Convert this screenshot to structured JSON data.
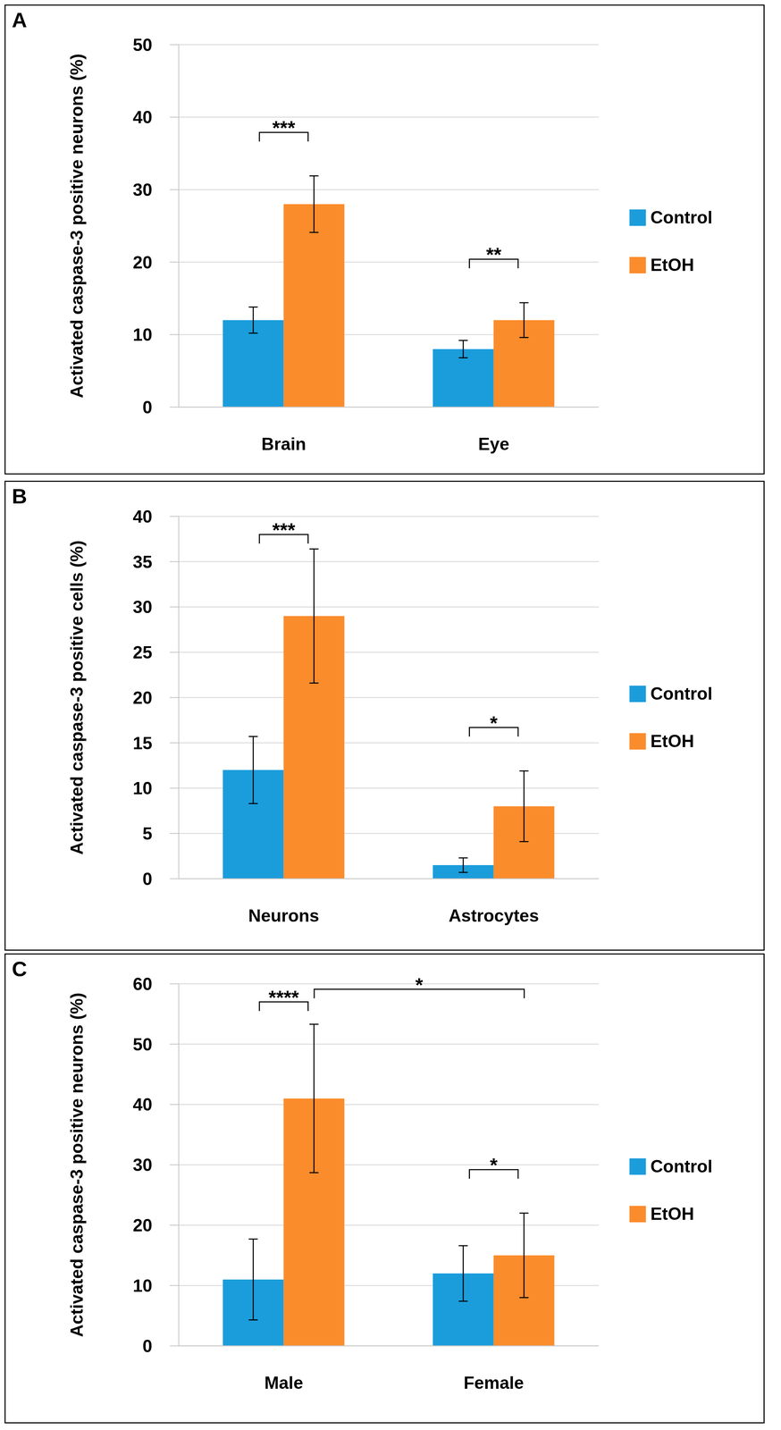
{
  "chart_data": [
    {
      "type": "bar",
      "title": "A",
      "ylabel": "Activated caspase-3 positive neurons (%)",
      "categories": [
        "Brain",
        "Eye"
      ],
      "series": [
        {
          "name": "Control",
          "color": "#1b9ddb",
          "values": [
            12,
            8
          ],
          "errors": [
            1.8,
            1.2
          ]
        },
        {
          "name": "EtOH",
          "color": "#fb8c2c",
          "values": [
            28,
            12
          ],
          "errors": [
            3.9,
            2.4
          ]
        }
      ],
      "ylim": [
        0,
        50
      ],
      "yticks": [
        0,
        10,
        20,
        30,
        40,
        50
      ],
      "grid": true,
      "legend": "right",
      "annotations": [
        {
          "text": "***",
          "from": {
            "category": "Brain",
            "series": "Control"
          },
          "to": {
            "category": "Brain",
            "series": "EtOH"
          }
        },
        {
          "text": "**",
          "from": {
            "category": "Eye",
            "series": "Control"
          },
          "to": {
            "category": "Eye",
            "series": "EtOH"
          }
        }
      ]
    },
    {
      "type": "bar",
      "title": "B",
      "ylabel": "Activated caspase-3 positive cells (%)",
      "categories": [
        "Neurons",
        "Astrocytes"
      ],
      "series": [
        {
          "name": "Control",
          "color": "#1b9ddb",
          "values": [
            12,
            1.5
          ],
          "errors": [
            3.7,
            0.8
          ]
        },
        {
          "name": "EtOH",
          "color": "#fb8c2c",
          "values": [
            29,
            8
          ],
          "errors": [
            7.4,
            3.9
          ]
        }
      ],
      "ylim": [
        0,
        40
      ],
      "yticks": [
        0,
        5,
        10,
        15,
        20,
        25,
        30,
        35,
        40
      ],
      "grid": true,
      "legend": "right",
      "annotations": [
        {
          "text": "***",
          "from": {
            "category": "Neurons",
            "series": "Control"
          },
          "to": {
            "category": "Neurons",
            "series": "EtOH"
          }
        },
        {
          "text": "*",
          "from": {
            "category": "Astrocytes",
            "series": "Control"
          },
          "to": {
            "category": "Astrocytes",
            "series": "EtOH"
          }
        }
      ]
    },
    {
      "type": "bar",
      "title": "C",
      "ylabel": "Activated caspase-3 positive neurons (%)",
      "categories": [
        "Male",
        "Female"
      ],
      "series": [
        {
          "name": "Control",
          "color": "#1b9ddb",
          "values": [
            11,
            12
          ],
          "errors": [
            6.7,
            4.6
          ]
        },
        {
          "name": "EtOH",
          "color": "#fb8c2c",
          "values": [
            41,
            15
          ],
          "errors": [
            12.3,
            7
          ]
        }
      ],
      "ylim": [
        0,
        60
      ],
      "yticks": [
        0,
        10,
        20,
        30,
        40,
        50,
        60
      ],
      "grid": true,
      "legend": "right",
      "annotations": [
        {
          "text": "****",
          "from": {
            "category": "Male",
            "series": "Control"
          },
          "to": {
            "category": "Male",
            "series": "EtOH"
          }
        },
        {
          "text": "*",
          "from": {
            "category": "Male",
            "series": "EtOH"
          },
          "to": {
            "category": "Female",
            "series": "EtOH"
          }
        },
        {
          "text": "*",
          "from": {
            "category": "Female",
            "series": "Control"
          },
          "to": {
            "category": "Female",
            "series": "EtOH"
          }
        }
      ]
    }
  ]
}
